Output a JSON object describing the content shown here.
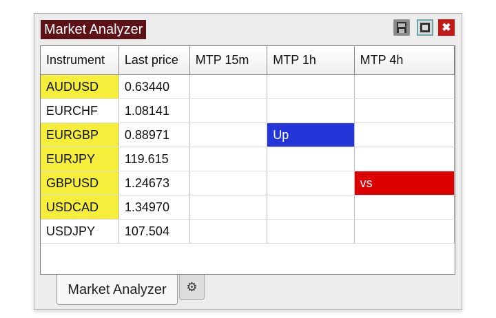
{
  "window": {
    "title": "Market Analyzer",
    "buttons": [
      {
        "icon": "save-icon"
      },
      {
        "icon": "restore-icon"
      },
      {
        "icon": "close-icon",
        "label": "✖"
      }
    ]
  },
  "table": {
    "columns": [
      "Instrument",
      "Last price",
      "MTP 15m",
      "MTP 1h",
      "MTP 4h"
    ],
    "rows": [
      {
        "instrument": "AUDUSD",
        "price": "0.63440",
        "highlight": true,
        "m15": "",
        "h1": "",
        "h4": ""
      },
      {
        "instrument": "EURCHF",
        "price": "1.08141",
        "highlight": false,
        "m15": "",
        "h1": "",
        "h4": ""
      },
      {
        "instrument": "EURGBP",
        "price": "0.88971",
        "highlight": true,
        "m15": "",
        "h1": "Up",
        "h4": ""
      },
      {
        "instrument": "EURJPY",
        "price": "119.615",
        "highlight": true,
        "m15": "",
        "h1": "",
        "h4": ""
      },
      {
        "instrument": "GBPUSD",
        "price": "1.24673",
        "highlight": true,
        "m15": "",
        "h1": "",
        "h4": "vs"
      },
      {
        "instrument": "USDCAD",
        "price": "1.34970",
        "highlight": true,
        "m15": "",
        "h1": "",
        "h4": ""
      },
      {
        "instrument": "USDJPY",
        "price": "107.504",
        "highlight": false,
        "m15": "",
        "h1": "",
        "h4": ""
      }
    ]
  },
  "colors": {
    "highlight": "#f5ee3a",
    "up": "#2536d8",
    "down": "#dd0000",
    "title_bg": "#5c1216"
  },
  "tabs": {
    "active": "Market Analyzer",
    "settings_icon": "gear-icon"
  }
}
